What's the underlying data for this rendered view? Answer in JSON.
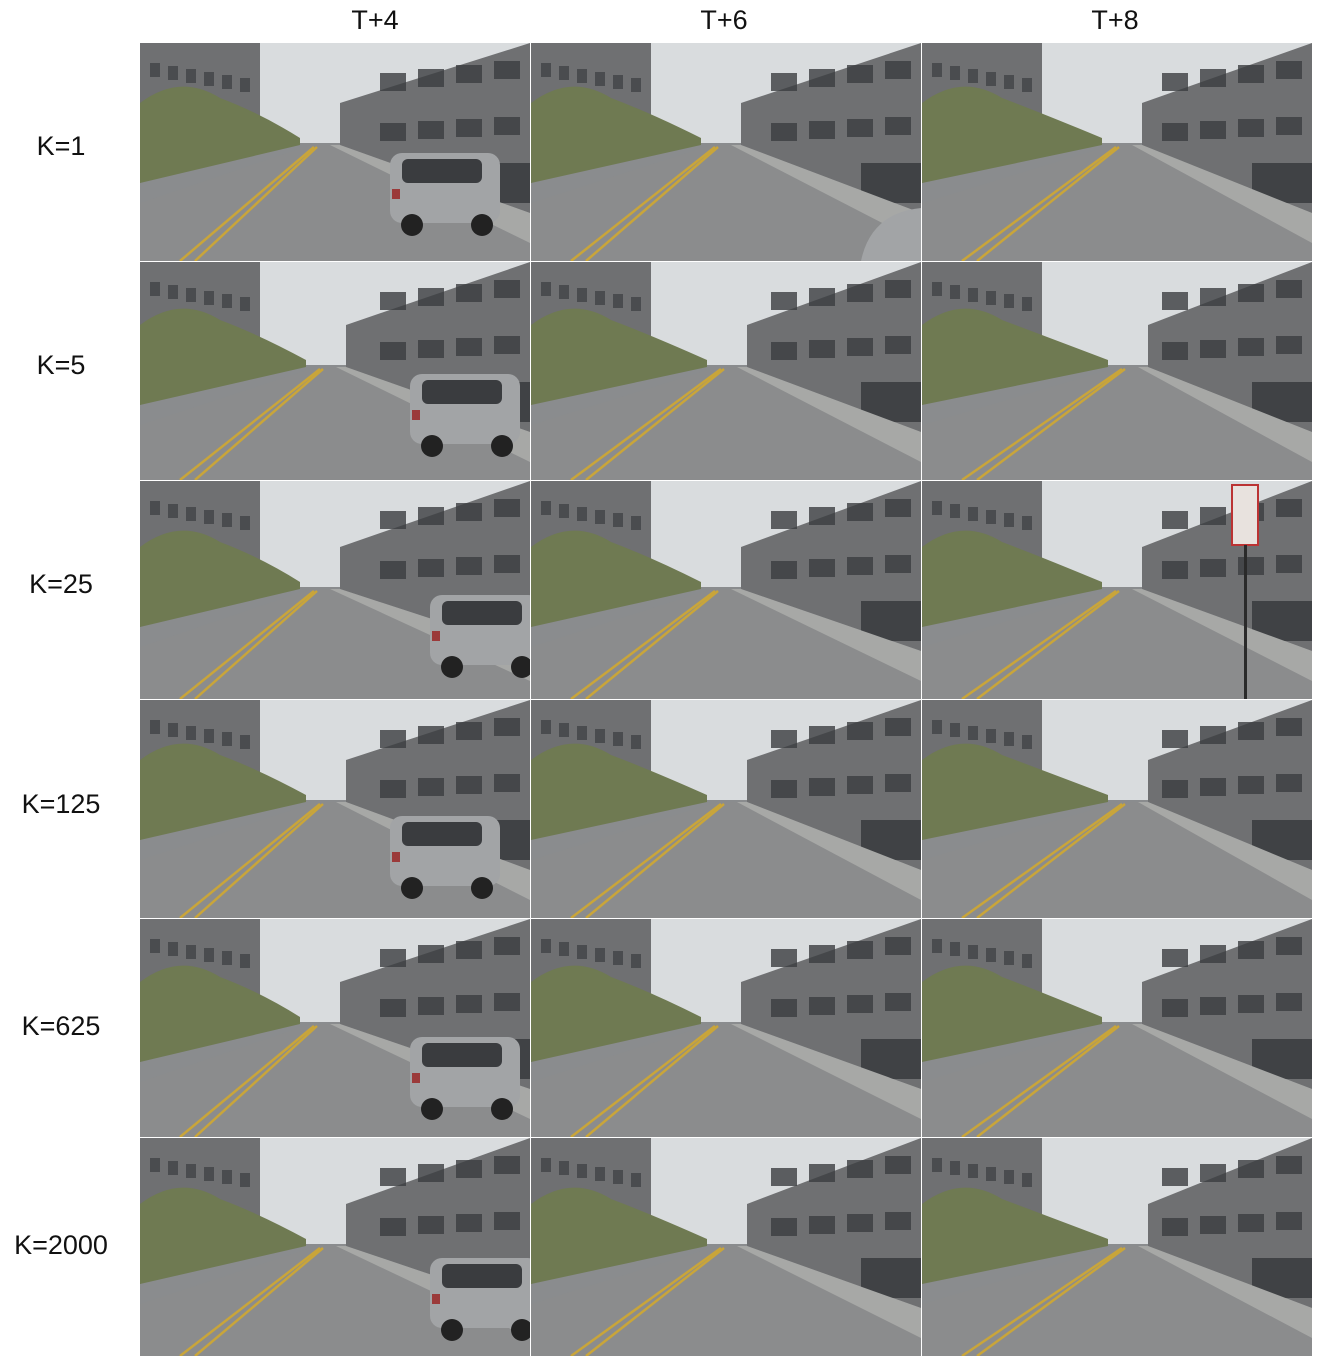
{
  "columns": [
    "T+4",
    "T+6",
    "T+8"
  ],
  "rows": [
    "K=1",
    "K=5",
    "K=25",
    "K=125",
    "K=625",
    "K=2000"
  ],
  "cells": [
    [
      {
        "car": true
      },
      {
        "car": false,
        "car_edge": true
      },
      {
        "car": false
      }
    ],
    [
      {
        "car": true
      },
      {
        "car": false
      },
      {
        "car": false
      }
    ],
    [
      {
        "car": true
      },
      {
        "car": false
      },
      {
        "car": false,
        "sign": true
      }
    ],
    [
      {
        "car": true
      },
      {
        "car": false
      },
      {
        "car": false
      }
    ],
    [
      {
        "car": true
      },
      {
        "car": false
      },
      {
        "car": false
      }
    ],
    [
      {
        "car": true
      },
      {
        "car": false
      },
      {
        "car": false
      }
    ]
  ],
  "colors": {
    "sky": "#d9dcde",
    "building": "#6f7072",
    "building_dark": "#3b3d40",
    "road": "#8b8c8d",
    "sidewalk": "#a7a8a6",
    "trees": "#6f7a52",
    "lane": "#c9a53a",
    "car": "#a2a4a6"
  }
}
